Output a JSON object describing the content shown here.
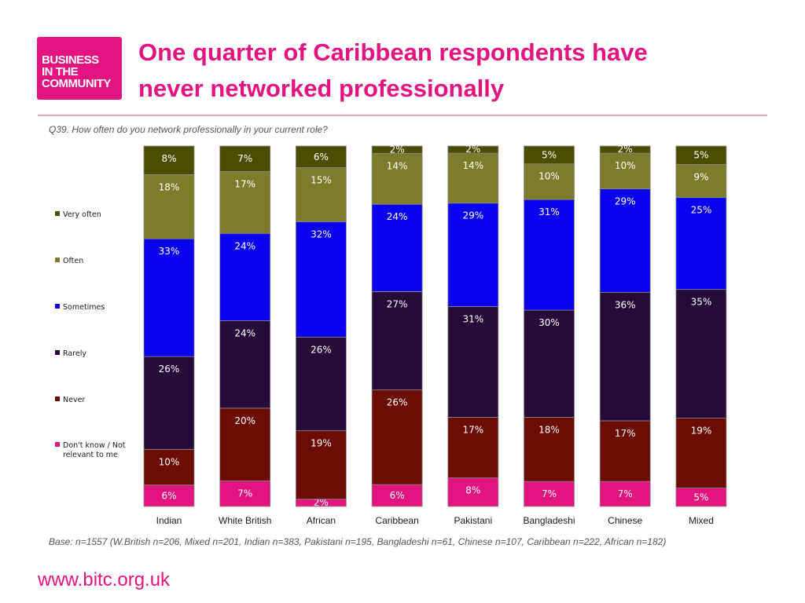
{
  "header": {
    "logo_lines": [
      "BUSINESS",
      "IN THE",
      "COMMUNITY"
    ],
    "title_lines": [
      "One quarter of Caribbean respondents have",
      "never networked professionally"
    ]
  },
  "question": "Q39. How often do you network professionally in your current role?",
  "base_note": "Base: n=1557 (W.British n=206, Mixed n=201, Indian n=383, Pakistani n=195, Bangladeshi n=61, Chinese n=107, Caribbean n=222, African n=182)",
  "footer_url": "www.bitc.org.uk",
  "colors": {
    "brand": "#e3137f",
    "very_often": "#4d4d00",
    "often": "#7c7c2b",
    "sometimes": "#0a00f0",
    "rarely": "#260a38",
    "never": "#6b0d05",
    "dont_know": "#e3137f"
  },
  "chart_data": {
    "type": "bar",
    "stacked": true,
    "categories": [
      "Indian",
      "White British",
      "African",
      "Caribbean",
      "Pakistani",
      "Bangladeshi",
      "Chinese",
      "Mixed"
    ],
    "legend_position": "left",
    "series": [
      {
        "name": "Don't know / Not relevant to me",
        "color": "#e3137f",
        "values": [
          6,
          7,
          2,
          6,
          8,
          7,
          7,
          5
        ]
      },
      {
        "name": "Never",
        "color": "#6b0d05",
        "values": [
          10,
          20,
          19,
          26,
          17,
          18,
          17,
          19
        ]
      },
      {
        "name": "Rarely",
        "color": "#260a38",
        "values": [
          26,
          24,
          26,
          27,
          31,
          30,
          36,
          35
        ]
      },
      {
        "name": "Sometimes",
        "color": "#0a00f0",
        "values": [
          33,
          24,
          32,
          24,
          29,
          31,
          29,
          25
        ]
      },
      {
        "name": "Often",
        "color": "#7c7c2b",
        "values": [
          18,
          17,
          15,
          14,
          14,
          10,
          10,
          9
        ]
      },
      {
        "name": "Very often",
        "color": "#4d4d00",
        "values": [
          8,
          7,
          6,
          2,
          2,
          5,
          2,
          5
        ]
      }
    ],
    "legend_order": [
      "Very often",
      "Often",
      "Sometimes",
      "Rarely",
      "Never",
      "Don't know / Not relevant to me"
    ],
    "value_suffix": "%"
  }
}
